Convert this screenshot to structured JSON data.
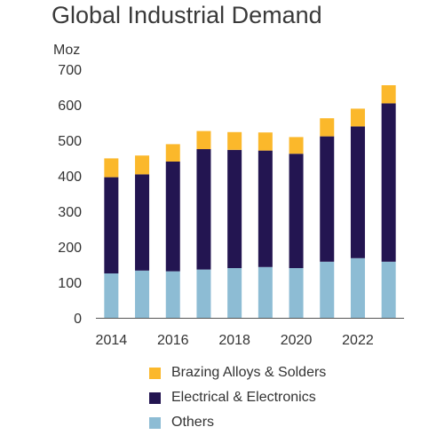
{
  "title": "Global Industrial Demand",
  "chart_data": {
    "type": "bar",
    "stacked": true,
    "title": "Global Industrial Demand",
    "ylabel": "Moz",
    "xlabel": "",
    "ylim": [
      0,
      700
    ],
    "yticks": [
      0,
      100,
      200,
      300,
      400,
      500,
      600,
      700
    ],
    "x_tick_labels": [
      "2014",
      "2016",
      "2018",
      "2020",
      "2022"
    ],
    "grid": false,
    "legend_position": "bottom",
    "categories": [
      "2014",
      "2015",
      "2016",
      "2017",
      "2018",
      "2019",
      "2020",
      "2021",
      "2022",
      "2023"
    ],
    "series": [
      {
        "name": "Others",
        "color": "#8dbcd4",
        "values": [
          125,
          133,
          131,
          136,
          140,
          143,
          140,
          158,
          168,
          158
        ]
      },
      {
        "name": "Electrical & Electronics",
        "color": "#231551",
        "values": [
          271,
          271,
          309,
          339,
          333,
          328,
          322,
          353,
          371,
          446
        ]
      },
      {
        "name": "Brazing Alloys & Solders",
        "color": "#fbb82b",
        "values": [
          53,
          53,
          49,
          51,
          50,
          51,
          47,
          51,
          50,
          51
        ]
      }
    ]
  },
  "legend": [
    {
      "label": "Brazing Alloys & Solders",
      "color": "#fbb82b"
    },
    {
      "label": "Electrical & Electronics",
      "color": "#231551"
    },
    {
      "label": "Others",
      "color": "#8dbcd4"
    }
  ]
}
